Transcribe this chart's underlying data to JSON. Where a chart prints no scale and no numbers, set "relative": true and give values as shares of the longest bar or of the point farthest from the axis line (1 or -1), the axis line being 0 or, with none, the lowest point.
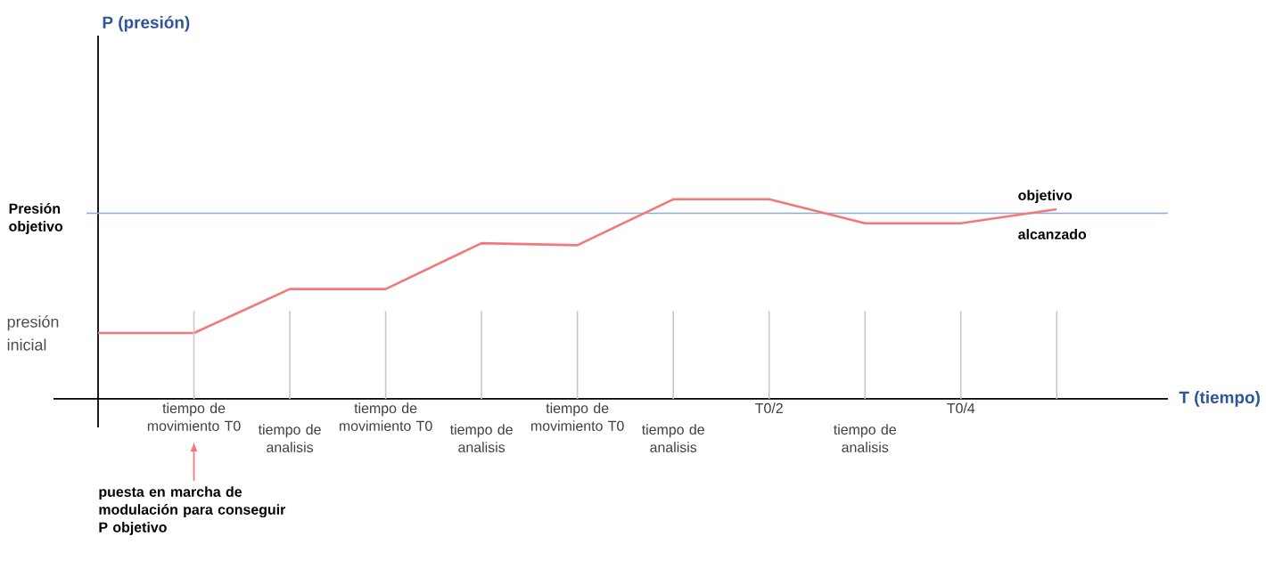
{
  "chart_data": {
    "type": "line",
    "relative": true,
    "xlabel": "T (tiempo)",
    "categories": [
      null,
      "tiempo de movimiento T0",
      "tiempo de analisis",
      "tiempo de movimiento T0",
      "tiempo de analisis",
      "tiempo de movimiento T0",
      "tiempo de analisis",
      "T0/2",
      "tiempo de analisis",
      "T0/4",
      null
    ],
    "series": [
      {
        "color": "#f4777a",
        "values": [
          0.33,
          0.33,
          0.55,
          0.55,
          0.78,
          0.77,
          1,
          1,
          0.88,
          0.88,
          0.95
        ]
      }
    ],
    "tick_labels": "x",
    "marker": "none",
    "line_style": "solid",
    "ref_lines": [
      {
        "axis": "y",
        "value": 0.93,
        "label": "Presión objetivo",
        "color": "#8eaadb"
      }
    ],
    "annotations": [
      "presión inicial",
      "objetivo alcanzado",
      "puesta en marcha de modulación para conseguir P objetivo",
      "P (presión)"
    ]
  }
}
